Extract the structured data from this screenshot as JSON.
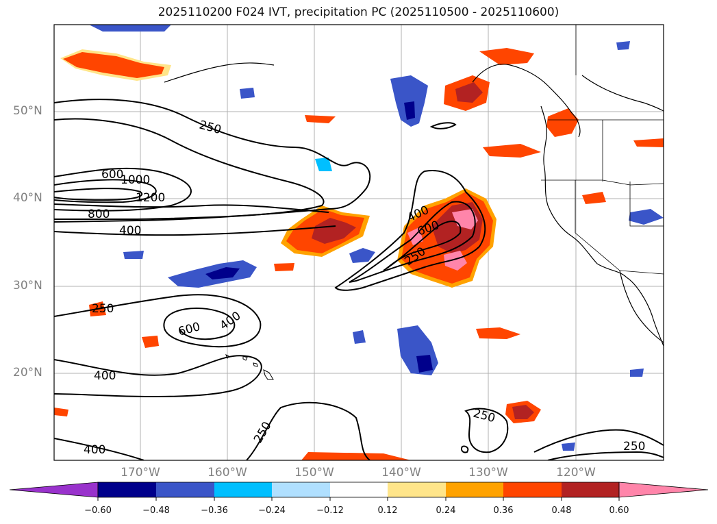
{
  "title": "2025110200 F024 IVT, precipitation PC (2025110500 - 2025110600)",
  "lat_labels": [
    "50°N",
    "40°N",
    "30°N",
    "20°N"
  ],
  "lon_labels": [
    "170°W",
    "160°W",
    "150°W",
    "140°W",
    "130°W",
    "120°W"
  ],
  "colorbar": {
    "ticks": [
      "−0.60",
      "−0.48",
      "−0.36",
      "−0.24",
      "−0.12",
      "0.12",
      "0.24",
      "0.36",
      "0.48",
      "0.60"
    ],
    "colors": [
      "#9932cc",
      "#00008b",
      "#3a55c8",
      "#00bfff",
      "#b0e0ff",
      "#ffffff",
      "#ffe58a",
      "#ffa200",
      "#ff4500",
      "#b22222",
      "#ff85aa"
    ]
  },
  "ivt_contour_labels": [
    "250",
    "600",
    "1000",
    "1200",
    "800",
    "400",
    "400",
    "600",
    "250",
    "250",
    "600",
    "400",
    "400",
    "250",
    "250",
    "400",
    "250"
  ]
}
